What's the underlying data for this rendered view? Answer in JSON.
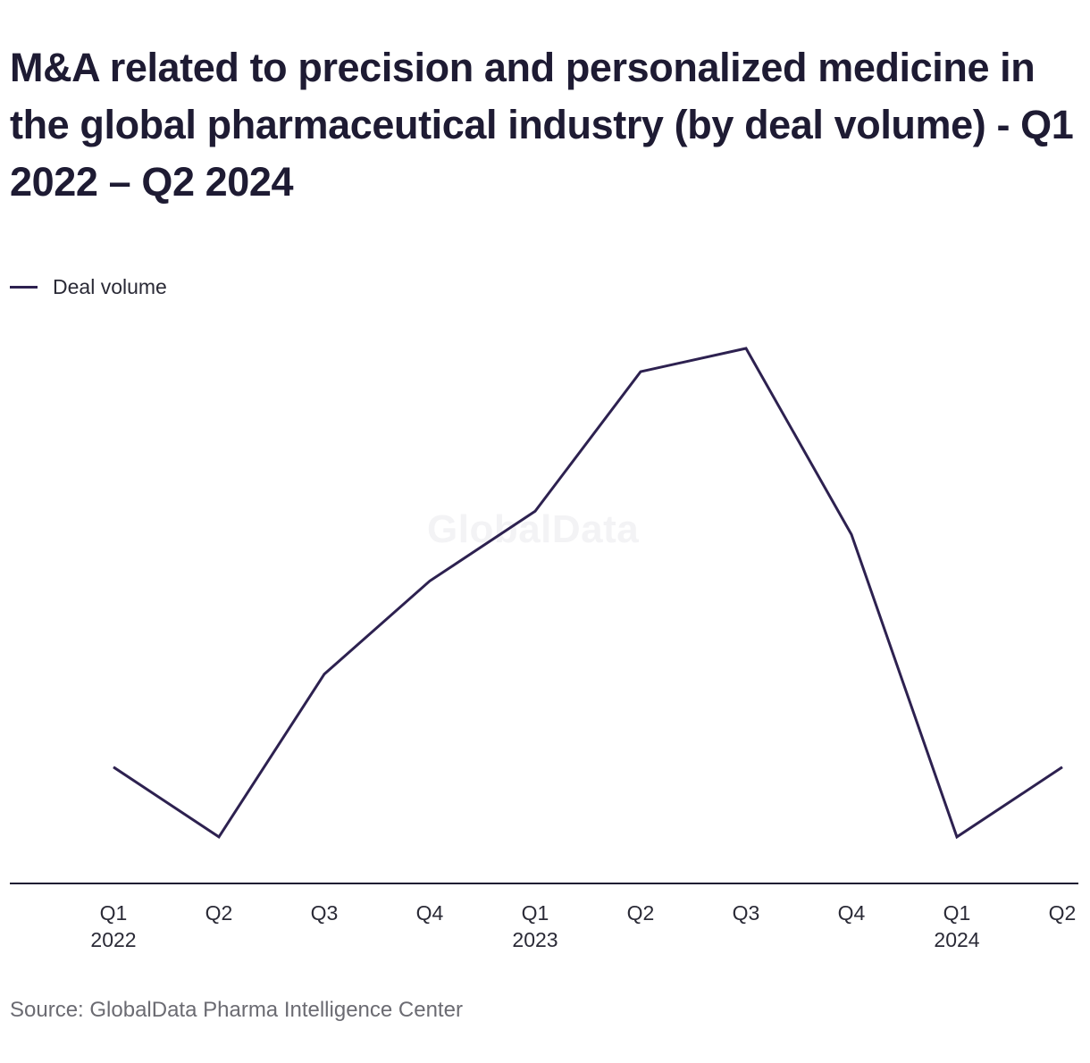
{
  "chart_data": {
    "type": "line",
    "title": "M&A related to precision and personalized medicine in the global pharmaceutical industry (by deal volume) - Q1 2022 – Q2 2024",
    "categories": [
      "Q1",
      "Q2",
      "Q3",
      "Q4",
      "Q1",
      "Q2",
      "Q3",
      "Q4",
      "Q1",
      "Q2"
    ],
    "category_years": [
      "2022",
      "",
      "",
      "",
      "2023",
      "",
      "",
      "",
      "2024",
      ""
    ],
    "series": [
      {
        "name": "Deal volume",
        "values": [
          3,
          0,
          7,
          11,
          14,
          20,
          21,
          13,
          0,
          3
        ]
      }
    ],
    "ylim": [
      -2,
      21
    ],
    "y_axis_shown": false,
    "grid": false,
    "legend": "top-left",
    "line_color": "#2d2150",
    "xlabel": "",
    "ylabel": ""
  },
  "legend_label": "Deal volume",
  "watermark": "GlobalData",
  "source": "Source: GlobalData Pharma Intelligence Center"
}
